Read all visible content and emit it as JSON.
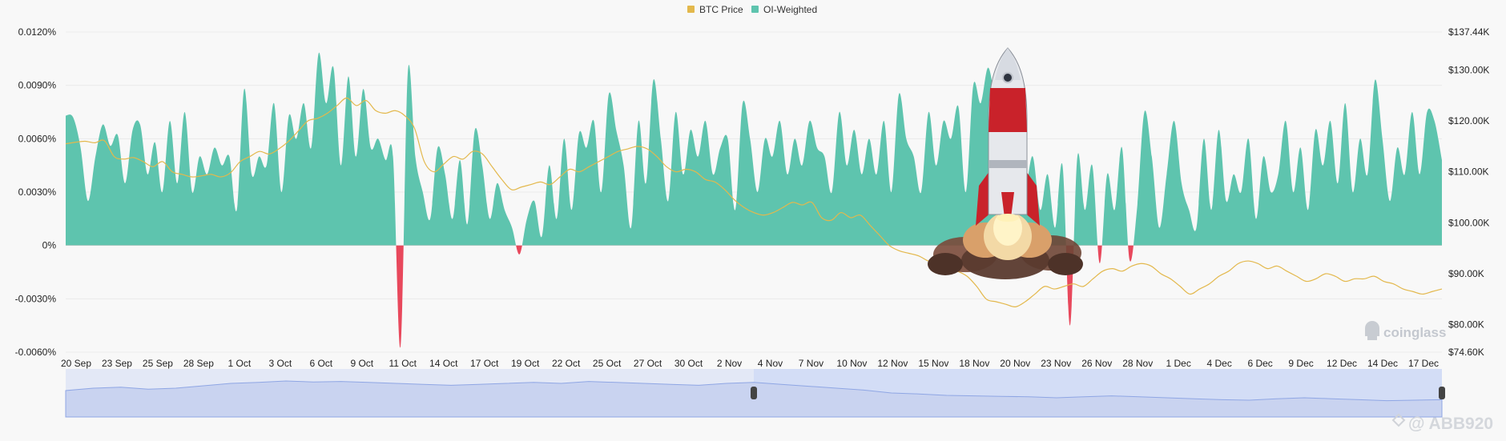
{
  "colors": {
    "oi_positive": "#5ec4ae",
    "oi_negative": "#e8485c",
    "btc_price": "#e3b84c",
    "grid": "#ebebeb",
    "slider_bg": "#e3e8f6",
    "slider_sel": "#d3ddf6",
    "slider_line": "#8fa6e4"
  },
  "icons": {
    "rocket": "rocket-launch-illustration",
    "brand_logo": "coinglass-logo-icon",
    "social_logo": "binance-square-logo-icon"
  },
  "watermark": {
    "brand": "coinglass",
    "handle": "@ ABB920"
  },
  "chart_data": {
    "type": "area",
    "legend": {
      "position": "top-center",
      "items": [
        {
          "name": "BTC Price",
          "color": "#e3b84c"
        },
        {
          "name": "OI-Weighted",
          "color": "#5ec4ae"
        }
      ]
    },
    "grid": "horizontal",
    "x_tick_labels": [
      "20 Sep",
      "23 Sep",
      "25 Sep",
      "28 Sep",
      "1 Oct",
      "3 Oct",
      "6 Oct",
      "9 Oct",
      "11 Oct",
      "14 Oct",
      "17 Oct",
      "19 Oct",
      "22 Oct",
      "25 Oct",
      "27 Oct",
      "30 Oct",
      "2 Nov",
      "4 Nov",
      "7 Nov",
      "10 Nov",
      "12 Nov",
      "15 Nov",
      "18 Nov",
      "20 Nov",
      "23 Nov",
      "26 Nov",
      "28 Nov",
      "1 Dec",
      "4 Dec",
      "6 Dec",
      "9 Dec",
      "12 Dec",
      "14 Dec",
      "17 Dec"
    ],
    "y_left": {
      "min": -0.006,
      "max": 0.012,
      "ticks": [
        -0.006,
        -0.003,
        0,
        0.003,
        0.006,
        0.009,
        0.012
      ],
      "tick_labels": [
        "-0.0060%",
        "-0.0030%",
        "0%",
        "0.0030%",
        "0.0060%",
        "0.0090%",
        "0.0120%"
      ]
    },
    "y_right": {
      "min": 74.6,
      "max": 137.44,
      "ticks": [
        74.6,
        80,
        90,
        100,
        110,
        120,
        130,
        137.44
      ],
      "tick_labels": [
        "$74.60K",
        "$80.00K",
        "$90.00K",
        "$100.00K",
        "$110.00K",
        "$120.00K",
        "$130.00K",
        "$137.44K"
      ]
    },
    "series": [
      {
        "name": "OI-Weighted",
        "axis": "left",
        "unit": "%",
        "values": [
          0.0073,
          0.0072,
          0.0055,
          0.0025,
          0.005,
          0.0068,
          0.0056,
          0.0062,
          0.0035,
          0.0065,
          0.0068,
          0.004,
          0.0058,
          0.003,
          0.007,
          0.0035,
          0.0075,
          0.003,
          0.005,
          0.004,
          0.0055,
          0.0045,
          0.005,
          0.002,
          0.0088,
          0.004,
          0.005,
          0.0045,
          0.008,
          0.003,
          0.0073,
          0.006,
          0.008,
          0.0055,
          0.0108,
          0.008,
          0.01,
          0.0045,
          0.0095,
          0.005,
          0.0088,
          0.0055,
          0.006,
          0.0048,
          0.005,
          -0.0057,
          0.0098,
          0.005,
          0.003,
          0.0015,
          0.0055,
          0.004,
          0.0015,
          0.0048,
          0.0012,
          0.0065,
          0.0045,
          0.0015,
          0.0035,
          0.002,
          0.001,
          -0.0005,
          0.0015,
          0.0025,
          0.0005,
          0.0045,
          0.0015,
          0.006,
          0.002,
          0.0063,
          0.0055,
          0.007,
          0.003,
          0.0085,
          0.0065,
          0.0045,
          0.001,
          0.007,
          0.0035,
          0.0093,
          0.006,
          0.0025,
          0.0075,
          0.004,
          0.0065,
          0.005,
          0.007,
          0.004,
          0.0055,
          0.006,
          0.002,
          0.008,
          0.006,
          0.003,
          0.006,
          0.005,
          0.007,
          0.004,
          0.006,
          0.0045,
          0.007,
          0.0055,
          0.005,
          0.003,
          0.0075,
          0.0045,
          0.0065,
          0.004,
          0.006,
          0.004,
          0.007,
          0.003,
          0.0085,
          0.006,
          0.005,
          0.003,
          0.0075,
          0.0045,
          0.007,
          0.006,
          0.0078,
          0.003,
          0.009,
          0.008,
          0.01,
          0.008,
          0.006,
          0.004,
          0.007,
          0.0035,
          0.005,
          0.002,
          0.004,
          0.001,
          0.0045,
          -0.0045,
          0.005,
          0.002,
          0.0045,
          -0.001,
          0.004,
          0.002,
          0.0055,
          -0.0008,
          0.002,
          0.0075,
          0.005,
          0.001,
          0.004,
          0.007,
          0.0035,
          0.002,
          0.001,
          0.006,
          0.002,
          0.0065,
          0.0025,
          0.004,
          0.003,
          0.006,
          0.0015,
          0.005,
          0.003,
          0.004,
          0.007,
          0.003,
          0.0055,
          0.002,
          0.0065,
          0.0045,
          0.007,
          0.0035,
          0.008,
          0.003,
          0.006,
          0.004,
          0.0093,
          0.006,
          0.0025,
          0.0055,
          0.004,
          0.0075,
          0.004,
          0.0075,
          0.007,
          0.0048
        ],
        "color": "#5ec4ae"
      },
      {
        "name": "BTC Price",
        "axis": "right",
        "unit": "$K",
        "values": [
          115.5,
          115.8,
          116.0,
          115.7,
          116.1,
          113.0,
          112.5,
          112.8,
          112.0,
          111.0,
          112.0,
          110.0,
          109.5,
          109.0,
          109.2,
          109.5,
          109.0,
          109.8,
          112.0,
          113.0,
          114.0,
          113.5,
          114.5,
          116.0,
          118.0,
          120.0,
          120.5,
          121.5,
          123.0,
          124.5,
          123.0,
          124.0,
          122.0,
          121.5,
          122.0,
          121.0,
          118.5,
          112.0,
          110.0,
          111.5,
          113.0,
          112.5,
          114.0,
          113.5,
          111.0,
          108.5,
          106.5,
          107.0,
          107.5,
          108.0,
          107.5,
          109.0,
          110.5,
          110.0,
          111.0,
          112.0,
          113.0,
          114.0,
          114.5,
          115.0,
          114.5,
          113.0,
          111.0,
          110.0,
          110.5,
          110.0,
          108.5,
          108.0,
          106.5,
          104.5,
          103.0,
          102.0,
          101.5,
          102.0,
          103.0,
          104.0,
          103.5,
          104.0,
          101.0,
          100.5,
          102.0,
          101.0,
          101.5,
          99.5,
          97.5,
          95.5,
          94.5,
          94.0,
          93.5,
          92.5,
          92.0,
          91.0,
          90.5,
          89.5,
          87.5,
          85.0,
          84.5,
          84.0,
          83.5,
          84.5,
          86.0,
          87.5,
          87.0,
          87.5,
          88.0,
          87.5,
          89.0,
          90.5,
          91.0,
          90.5,
          91.5,
          92.0,
          91.5,
          90.0,
          89.0,
          87.5,
          86.0,
          87.0,
          88.0,
          89.5,
          90.5,
          92.0,
          92.5,
          92.0,
          91.0,
          91.5,
          90.5,
          89.5,
          88.5,
          89.0,
          90.0,
          89.5,
          88.5,
          89.0,
          89.0,
          89.5,
          88.5,
          88.0,
          87.0,
          86.5,
          86.0,
          86.5,
          87.0
        ],
        "color": "#e3b84c"
      }
    ],
    "navigator": {
      "selected_range_fraction": [
        0.5,
        1.0
      ],
      "values": [
        0.55,
        0.6,
        0.62,
        0.58,
        0.6,
        0.65,
        0.7,
        0.72,
        0.75,
        0.73,
        0.74,
        0.72,
        0.7,
        0.68,
        0.66,
        0.68,
        0.7,
        0.72,
        0.7,
        0.74,
        0.72,
        0.7,
        0.68,
        0.66,
        0.7,
        0.72,
        0.68,
        0.64,
        0.6,
        0.56,
        0.5,
        0.48,
        0.45,
        0.44,
        0.43,
        0.42,
        0.4,
        0.42,
        0.44,
        0.42,
        0.4,
        0.38,
        0.36,
        0.35,
        0.38,
        0.4,
        0.38,
        0.36,
        0.34,
        0.35,
        0.36
      ]
    }
  }
}
